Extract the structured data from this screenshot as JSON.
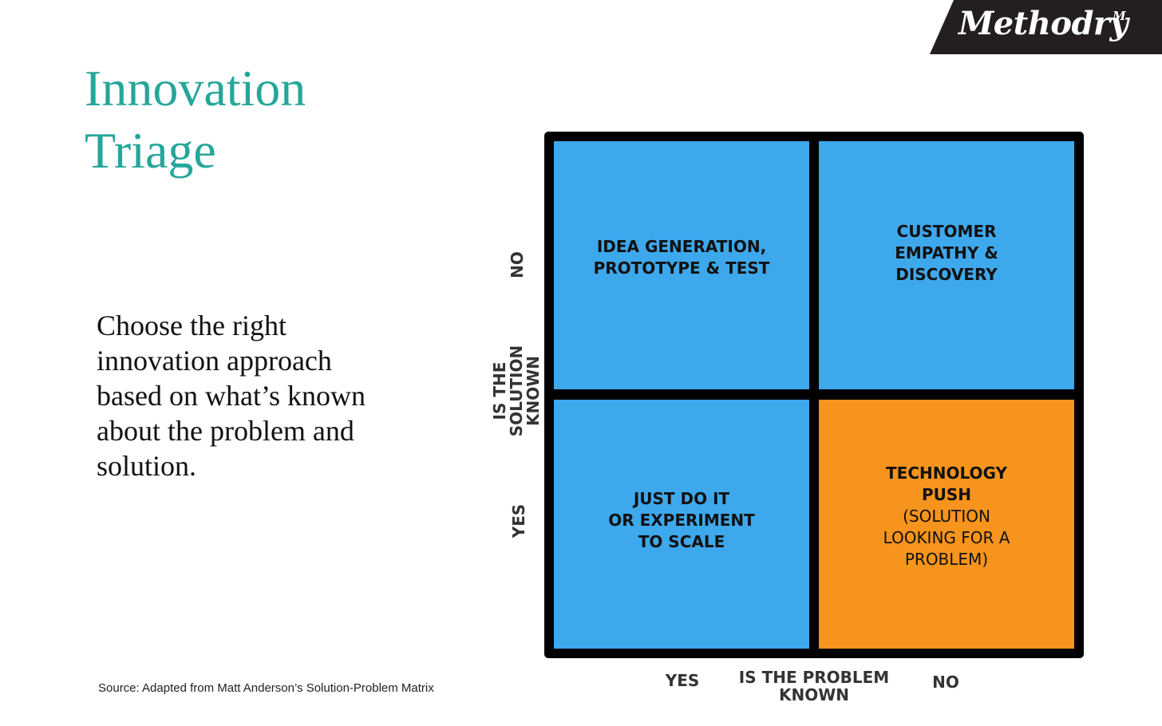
{
  "logo": {
    "text": "Methodry",
    "mark": "M",
    "background": "#231f20"
  },
  "title": {
    "line1": "Innovation",
    "line2": "Triage",
    "color": "#26a69a"
  },
  "description": "Choose the right innovation approach based on what’s known about the problem and solution.",
  "source": "Source: Adapted from Matt Anderson’s Solution-Problem Matrix",
  "matrix": {
    "colors": {
      "blue": "#3ea8ec",
      "orange": "#f7941d",
      "border": "#000000"
    },
    "top_left": {
      "line1": "IDEA GENERATION,",
      "line2": "PROTOTYPE & TEST"
    },
    "top_right": {
      "line1": "CUSTOMER",
      "line2": "EMPATHY &",
      "line3": "DISCOVERY"
    },
    "bottom_left": {
      "line1": "JUST DO IT",
      "line2": "OR EXPERIMENT",
      "line3": "TO SCALE"
    },
    "bottom_right": {
      "line1": "TECHNOLOGY",
      "line2": "PUSH",
      "line3": "(SOLUTION",
      "line4": "LOOKING FOR A",
      "line5": "PROBLEM)"
    }
  },
  "y_axis": {
    "title_line1": "IS THE",
    "title_line2": "SOLUTION",
    "title_line3": "KNOWN",
    "top": "NO",
    "bottom": "YES"
  },
  "x_axis": {
    "title_line1": "IS THE PROBLEM",
    "title_line2": "KNOWN",
    "left": "YES",
    "right": "NO"
  }
}
